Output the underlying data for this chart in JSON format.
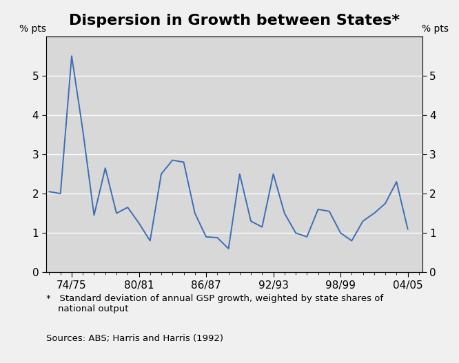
{
  "title": "Dispersion in Growth between States*",
  "ylabel_left": "% pts",
  "ylabel_right": "% pts",
  "footnote_star": "*   Standard deviation of annual GSP growth, weighted by state shares of\n    national output",
  "footnote_sources": "Sources: ABS; Harris and Harris (1992)",
  "ylim": [
    0,
    6
  ],
  "yticks": [
    0,
    1,
    2,
    3,
    4,
    5
  ],
  "line_color": "#3c6eb4",
  "fig_facecolor": "#f0f0f0",
  "plot_facecolor": "#d8d8d8",
  "x_start_year": 1972,
  "x_end_year": 2005,
  "x_tick_labels": [
    "74/75",
    "80/81",
    "86/87",
    "92/93",
    "98/99",
    "04/05"
  ],
  "x_tick_positions": [
    1974,
    1980,
    1986,
    1992,
    1998,
    2004
  ],
  "years": [
    1972,
    1973,
    1974,
    1975,
    1976,
    1977,
    1978,
    1979,
    1980,
    1981,
    1982,
    1983,
    1984,
    1985,
    1986,
    1987,
    1988,
    1989,
    1990,
    1991,
    1992,
    1993,
    1994,
    1995,
    1996,
    1997,
    1998,
    1999,
    2000,
    2001,
    2002,
    2003,
    2004
  ],
  "values": [
    2.05,
    2.0,
    5.5,
    3.6,
    1.45,
    2.65,
    1.5,
    1.65,
    1.25,
    0.8,
    2.5,
    2.85,
    2.8,
    1.5,
    0.9,
    0.88,
    0.6,
    2.5,
    1.3,
    1.15,
    2.5,
    1.5,
    1.0,
    0.9,
    1.6,
    1.55,
    1.0,
    0.8,
    1.3,
    1.5,
    1.75,
    2.3,
    1.1
  ],
  "title_fontsize": 16,
  "axis_label_fontsize": 10,
  "tick_fontsize": 11,
  "footnote_fontsize": 9.5
}
